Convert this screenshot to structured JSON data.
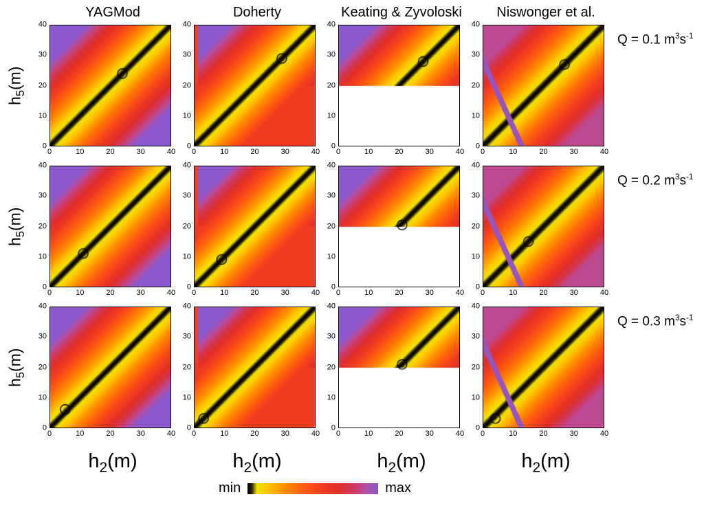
{
  "columns": [
    {
      "title": "YAGMod"
    },
    {
      "title": "Doherty"
    },
    {
      "title": "Keating & Zyvoloski"
    },
    {
      "title": "Niswonger et al."
    }
  ],
  "rows": [
    {
      "text": "Q = 0.1 m³s⁻¹",
      "q_prefix": "Q = 0.1 m",
      "q_exp": "3",
      "q_unit": "s",
      "q_exp2": "-1"
    },
    {
      "text": "Q = 0.2 m³s⁻¹",
      "q_prefix": "Q = 0.2 m",
      "q_exp": "3",
      "q_unit": "s",
      "q_exp2": "-1"
    },
    {
      "text": "Q = 0.3 m³s⁻¹",
      "q_prefix": "Q = 0.3 m",
      "q_exp": "3",
      "q_unit": "s",
      "q_exp2": "-1"
    }
  ],
  "axes": {
    "x_label": {
      "base": "h",
      "sub": "2",
      "rest": "(m)"
    },
    "y_label": {
      "base": "h",
      "sub": "5",
      "rest": "(m)"
    },
    "xticks": [
      0,
      10,
      20,
      30,
      40
    ],
    "yticks": [
      40,
      30,
      20,
      10,
      0
    ]
  },
  "colorbar": {
    "min_label": "min",
    "max_label": "max"
  },
  "chart_meta": {
    "x_range": [
      0,
      40
    ],
    "y_range": [
      0,
      40
    ],
    "xlabel": "h2 (m)",
    "ylabel": "h5 (m)",
    "grid": false,
    "colormap": {
      "orientation": "min at left (black/yellow) to max at right (purple)",
      "stops": [
        [
          0.0,
          "#000000"
        ],
        [
          0.03,
          "#2b2300"
        ],
        [
          0.07,
          "#f2e200"
        ],
        [
          0.16,
          "#ffc400"
        ],
        [
          0.28,
          "#ff8c00"
        ],
        [
          0.42,
          "#ff5e10"
        ],
        [
          0.56,
          "#f23d1e"
        ],
        [
          0.7,
          "#e02f2a"
        ],
        [
          0.82,
          "#cf3a64"
        ],
        [
          0.91,
          "#b14fa6"
        ],
        [
          1.0,
          "#8a57cc"
        ]
      ]
    },
    "value_semantics": "objective-function surface: minimum (black/yellow) along the bright diagonal valley y = x, maximum (purple) far from it; open black circle marks the identified optimum point"
  },
  "chart_data": [
    {
      "type": "heatmap",
      "id": "r0c0",
      "row": 0,
      "col": 0,
      "model": "YAGMod",
      "q_label": "Q = 0.1 m³s⁻¹",
      "pattern": "diagonal-valley",
      "valley_line": "y = x",
      "params": {
        "spread": 28
      },
      "circle_marker": [
        24,
        24
      ]
    },
    {
      "type": "heatmap",
      "id": "r0c1",
      "row": 0,
      "col": 1,
      "model": "Doherty",
      "q_label": "Q = 0.1 m³s⁻¹",
      "pattern": "diagonal-valley-split",
      "valley_line": "y = x",
      "params": {
        "spread": 28,
        "split_y": 20,
        "lower_cap": 0.58,
        "left_stripe_x": 1.2,
        "left_stripe_value": 0.55
      },
      "circle_marker": [
        29,
        29
      ]
    },
    {
      "type": "heatmap",
      "id": "r0c2",
      "row": 0,
      "col": 2,
      "model": "Keating & Zyvoloski",
      "q_label": "Q = 0.1 m³s⁻¹",
      "pattern": "diagonal-valley-top-half",
      "valley_line": "y = x",
      "params": {
        "spread": 28,
        "blank_below_y": 20
      },
      "circle_marker": [
        28,
        28
      ]
    },
    {
      "type": "heatmap",
      "id": "r0c3",
      "row": 0,
      "col": 3,
      "model": "Niswonger et al.",
      "q_label": "Q = 0.1 m³s⁻¹",
      "pattern": "diagonal-valley-with-ridge",
      "valley_line": "y = x",
      "params": {
        "spread": 30,
        "cap": 0.88,
        "ridge_intercept": 28,
        "ridge_slope": -2.2,
        "ridge_halfwidth": 2.2,
        "ridge_value": 0.97
      },
      "circle_marker": [
        27,
        27
      ]
    },
    {
      "type": "heatmap",
      "id": "r1c0",
      "row": 1,
      "col": 0,
      "model": "YAGMod",
      "q_label": "Q = 0.2 m³s⁻¹",
      "pattern": "diagonal-valley",
      "valley_line": "y = x",
      "params": {
        "spread": 28
      },
      "circle_marker": [
        11,
        11
      ]
    },
    {
      "type": "heatmap",
      "id": "r1c1",
      "row": 1,
      "col": 1,
      "model": "Doherty",
      "q_label": "Q = 0.2 m³s⁻¹",
      "pattern": "diagonal-valley-split",
      "valley_line": "y = x",
      "params": {
        "spread": 28,
        "split_y": 20,
        "lower_cap": 0.58,
        "left_stripe_x": 1.2,
        "left_stripe_value": 0.55
      },
      "circle_marker": [
        9,
        9
      ]
    },
    {
      "type": "heatmap",
      "id": "r1c2",
      "row": 1,
      "col": 2,
      "model": "Keating & Zyvoloski",
      "q_label": "Q = 0.2 m³s⁻¹",
      "pattern": "diagonal-valley-top-half",
      "valley_line": "y = x",
      "params": {
        "spread": 28,
        "blank_below_y": 20
      },
      "circle_marker": [
        21,
        20.5
      ]
    },
    {
      "type": "heatmap",
      "id": "r1c3",
      "row": 1,
      "col": 3,
      "model": "Niswonger et al.",
      "q_label": "Q = 0.2 m³s⁻¹",
      "pattern": "diagonal-valley-with-ridge",
      "valley_line": "y = x",
      "params": {
        "spread": 30,
        "cap": 0.88,
        "ridge_intercept": 28,
        "ridge_slope": -2.2,
        "ridge_halfwidth": 2.2,
        "ridge_value": 0.97
      },
      "circle_marker": [
        15,
        15
      ]
    },
    {
      "type": "heatmap",
      "id": "r2c0",
      "row": 2,
      "col": 0,
      "model": "YAGMod",
      "q_label": "Q = 0.3 m³s⁻¹",
      "pattern": "diagonal-valley",
      "valley_line": "y = x",
      "params": {
        "spread": 28
      },
      "circle_marker": [
        5,
        6
      ]
    },
    {
      "type": "heatmap",
      "id": "r2c1",
      "row": 2,
      "col": 1,
      "model": "Doherty",
      "q_label": "Q = 0.3 m³s⁻¹",
      "pattern": "diagonal-valley-split",
      "valley_line": "y = x",
      "params": {
        "spread": 28,
        "split_y": 20,
        "lower_cap": 0.58,
        "left_stripe_x": 1.2,
        "left_stripe_value": 0.55
      },
      "circle_marker": [
        3,
        3
      ]
    },
    {
      "type": "heatmap",
      "id": "r2c2",
      "row": 2,
      "col": 2,
      "model": "Keating & Zyvoloski",
      "q_label": "Q = 0.3 m³s⁻¹",
      "pattern": "diagonal-valley-top-half",
      "valley_line": "y = x",
      "params": {
        "spread": 28,
        "blank_below_y": 20
      },
      "circle_marker": [
        21,
        21
      ]
    },
    {
      "type": "heatmap",
      "id": "r2c3",
      "row": 2,
      "col": 3,
      "model": "Niswonger et al.",
      "q_label": "Q = 0.3 m³s⁻¹",
      "pattern": "diagonal-valley-with-ridge",
      "valley_line": "y = x",
      "params": {
        "spread": 30,
        "cap": 0.88,
        "ridge_intercept": 28,
        "ridge_slope": -2.2,
        "ridge_halfwidth": 2.2,
        "ridge_value": 0.97
      },
      "circle_marker": [
        4,
        3
      ]
    }
  ]
}
